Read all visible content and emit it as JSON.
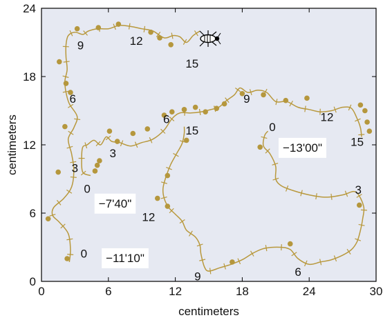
{
  "chart_data": {
    "type": "line",
    "title": "",
    "xlabel": "centimeters",
    "ylabel": "centimeters",
    "xlim": [
      0,
      30
    ],
    "ylim": [
      0,
      24
    ],
    "xticks": [
      "0",
      "6",
      "12",
      "18",
      "24",
      "30"
    ],
    "yticks": [
      "0",
      "6",
      "12",
      "18",
      "24"
    ],
    "grid": false,
    "colors": {
      "background": "#e6e9f2",
      "path": "#b8983c",
      "dot": "#b5973d",
      "frame": "#000000"
    },
    "series": [
      {
        "label": "−11'10\"",
        "path": [
          [
            2.5,
            1.7
          ],
          [
            2.6,
            2.8
          ],
          [
            2.4,
            4.2
          ],
          [
            1.6,
            5.2
          ],
          [
            1.0,
            5.8
          ],
          [
            1.1,
            6.5
          ],
          [
            2.0,
            7.3
          ],
          [
            2.7,
            8.3
          ],
          [
            2.9,
            9.8
          ],
          [
            2.7,
            11.2
          ],
          [
            2.4,
            12.5
          ],
          [
            2.9,
            13.5
          ],
          [
            3.2,
            14.5
          ],
          [
            2.5,
            15.6
          ],
          [
            2.2,
            16.6
          ],
          [
            2.1,
            17.6
          ],
          [
            2.3,
            18.6
          ],
          [
            2.2,
            19.7
          ],
          [
            2.2,
            20.8
          ],
          [
            2.4,
            21.6
          ],
          [
            3.0,
            21.9
          ],
          [
            3.7,
            21.7
          ],
          [
            4.2,
            22.0
          ],
          [
            5.0,
            22.2
          ],
          [
            6.0,
            22.2
          ],
          [
            7.0,
            22.5
          ],
          [
            8.0,
            22.4
          ],
          [
            9.0,
            22.2
          ],
          [
            10.0,
            22.0
          ],
          [
            11.0,
            21.4
          ],
          [
            11.8,
            21.6
          ],
          [
            12.4,
            21.5
          ],
          [
            13.0,
            21.0
          ],
          [
            13.6,
            21.6
          ],
          [
            14.2,
            22.0
          ]
        ],
        "dots": [
          [
            2.3,
            2.0
          ],
          [
            0.6,
            5.5
          ],
          [
            1.5,
            9.6
          ],
          [
            2.1,
            13.6
          ],
          [
            2.6,
            16.6
          ],
          [
            2.2,
            17.4
          ],
          [
            1.6,
            19.3
          ],
          [
            3.2,
            22.2
          ],
          [
            5.1,
            22.3
          ],
          [
            6.9,
            22.6
          ],
          [
            9.8,
            21.9
          ],
          [
            10.6,
            21.4
          ],
          [
            11.6,
            20.8
          ]
        ],
        "labels": [
          {
            "text": "0",
            "x": 3.8,
            "y": 2.1
          },
          {
            "text": "3",
            "x": 3.0,
            "y": 9.6
          },
          {
            "text": "6",
            "x": 2.8,
            "y": 15.7
          },
          {
            "text": "9",
            "x": 3.5,
            "y": 20.4
          },
          {
            "text": "12",
            "x": 8.5,
            "y": 20.8
          },
          {
            "text": "15",
            "x": 13.5,
            "y": 18.8
          }
        ],
        "annotation": {
          "text": "−11'10\"",
          "x": 7.5,
          "y": 1.7
        }
      },
      {
        "label": "−7'40\"",
        "path": [
          [
            4.4,
            9.3
          ],
          [
            3.7,
            9.6
          ],
          [
            3.6,
            10.8
          ],
          [
            3.7,
            11.8
          ],
          [
            4.1,
            12.0
          ],
          [
            4.7,
            12.4
          ],
          [
            5.3,
            12.0
          ],
          [
            5.8,
            12.7
          ],
          [
            6.3,
            12.3
          ],
          [
            7.0,
            12.2
          ],
          [
            8.0,
            11.9
          ],
          [
            9.0,
            12.2
          ],
          [
            10.0,
            12.5
          ],
          [
            11.0,
            13.3
          ],
          [
            11.7,
            14.3
          ],
          [
            12.4,
            14.8
          ],
          [
            13.4,
            14.8
          ],
          [
            14.3,
            14.9
          ],
          [
            15.2,
            15.1
          ],
          [
            15.9,
            15.3
          ],
          [
            16.6,
            15.9
          ],
          [
            17.3,
            16.4
          ],
          [
            17.8,
            17.0
          ],
          [
            18.5,
            16.6
          ],
          [
            19.4,
            16.8
          ],
          [
            20.2,
            16.6
          ],
          [
            21.0,
            15.8
          ],
          [
            22.0,
            15.8
          ],
          [
            23.0,
            15.3
          ],
          [
            24.0,
            15.1
          ],
          [
            25.0,
            14.9
          ],
          [
            26.0,
            15.0
          ],
          [
            27.0,
            15.3
          ],
          [
            27.8,
            15.2
          ],
          [
            28.3,
            14.3
          ],
          [
            28.6,
            13.5
          ],
          [
            28.7,
            12.7
          ]
        ],
        "dots": [
          [
            4.8,
            9.7
          ],
          [
            5.0,
            10.2
          ],
          [
            5.2,
            10.6
          ],
          [
            6.1,
            13.2
          ],
          [
            6.8,
            12.3
          ],
          [
            8.2,
            13.0
          ],
          [
            9.5,
            13.4
          ],
          [
            11.0,
            14.6
          ],
          [
            11.7,
            14.9
          ],
          [
            12.8,
            15.1
          ],
          [
            13.8,
            15.3
          ],
          [
            14.7,
            14.9
          ],
          [
            15.7,
            15.2
          ],
          [
            16.4,
            15.6
          ],
          [
            18.0,
            16.5
          ],
          [
            19.9,
            16.4
          ],
          [
            21.9,
            15.9
          ],
          [
            23.8,
            16.1
          ],
          [
            28.6,
            15.5
          ],
          [
            29.0,
            15.0
          ],
          [
            29.2,
            14.0
          ],
          [
            29.4,
            13.2
          ]
        ],
        "labels": [
          {
            "text": "0",
            "x": 4.1,
            "y": 7.8
          },
          {
            "text": "3",
            "x": 6.4,
            "y": 10.9
          },
          {
            "text": "6",
            "x": 11.2,
            "y": 13.9
          },
          {
            "text": "9",
            "x": 18.4,
            "y": 15.7
          },
          {
            "text": "12",
            "x": 25.6,
            "y": 14.1
          },
          {
            "text": "15",
            "x": 28.3,
            "y": 11.9
          }
        ],
        "annotation": {
          "text": "−7'40\"",
          "x": 6.6,
          "y": 6.5
        }
      },
      {
        "label": "−13'00\"",
        "path": [
          [
            20.3,
            13.2
          ],
          [
            20.0,
            12.8
          ],
          [
            19.9,
            11.9
          ],
          [
            20.5,
            11.2
          ],
          [
            21.0,
            10.1
          ],
          [
            21.0,
            9.0
          ],
          [
            21.5,
            8.4
          ],
          [
            22.5,
            8.0
          ],
          [
            24.0,
            7.6
          ],
          [
            25.5,
            7.4
          ],
          [
            27.0,
            7.6
          ],
          [
            28.0,
            7.9
          ],
          [
            28.5,
            7.5
          ],
          [
            28.9,
            6.5
          ],
          [
            28.8,
            5.5
          ],
          [
            28.6,
            4.5
          ],
          [
            28.3,
            3.5
          ],
          [
            27.8,
            2.8
          ],
          [
            27.0,
            2.3
          ],
          [
            26.0,
            1.9
          ],
          [
            25.0,
            1.7
          ],
          [
            24.0,
            1.5
          ],
          [
            23.0,
            2.0
          ],
          [
            22.3,
            2.8
          ],
          [
            21.4,
            3.0
          ],
          [
            20.0,
            2.9
          ],
          [
            19.0,
            2.5
          ],
          [
            18.0,
            1.9
          ],
          [
            17.0,
            1.5
          ],
          [
            16.0,
            1.2
          ],
          [
            15.0,
            0.9
          ],
          [
            14.6,
            1.3
          ],
          [
            14.3,
            2.4
          ],
          [
            14.2,
            3.2
          ],
          [
            13.8,
            3.9
          ],
          [
            13.0,
            4.5
          ],
          [
            12.6,
            5.3
          ],
          [
            12.0,
            5.9
          ],
          [
            11.4,
            6.5
          ],
          [
            11.0,
            7.3
          ],
          [
            10.9,
            8.2
          ],
          [
            11.2,
            9.3
          ],
          [
            11.6,
            10.3
          ],
          [
            12.1,
            11.2
          ],
          [
            12.6,
            12.1
          ],
          [
            12.8,
            13.0
          ],
          [
            12.8,
            13.6
          ]
        ],
        "dots": [
          [
            19.6,
            11.8
          ],
          [
            28.5,
            6.7
          ],
          [
            22.3,
            3.3
          ],
          [
            17.1,
            1.7
          ],
          [
            11.3,
            6.6
          ],
          [
            10.4,
            7.3
          ],
          [
            11.3,
            9.3
          ],
          [
            13.0,
            12.4
          ]
        ],
        "labels": [
          {
            "text": "0",
            "x": 20.7,
            "y": 13.2
          },
          {
            "text": "3",
            "x": 28.4,
            "y": 7.7
          },
          {
            "text": "6",
            "x": 23.0,
            "y": 0.5
          },
          {
            "text": "9",
            "x": 14.0,
            "y": 0.1
          },
          {
            "text": "12",
            "x": 9.6,
            "y": 5.3
          },
          {
            "text": "15",
            "x": 13.5,
            "y": 12.9
          }
        ],
        "annotation": {
          "text": "−13'00\"",
          "x": 23.4,
          "y": 11.4
        }
      }
    ]
  }
}
